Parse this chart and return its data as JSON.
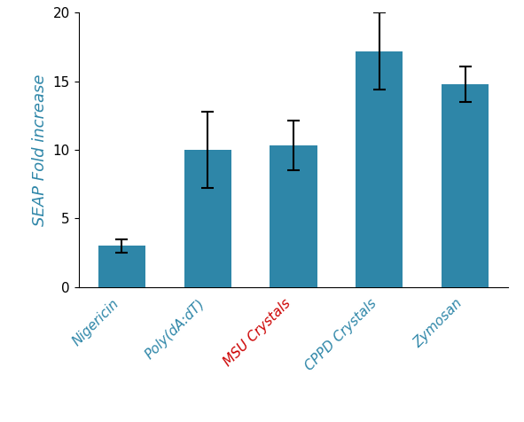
{
  "categories": [
    "Nigericin",
    "Poly(dA:dT)",
    "MSU Crystals",
    "CPPD Crystals",
    "Zymosan"
  ],
  "values": [
    3.0,
    10.0,
    10.3,
    17.2,
    14.8
  ],
  "errors": [
    0.5,
    2.8,
    1.8,
    2.8,
    1.3
  ],
  "bar_color": "#2e86a8",
  "label_colors": [
    "#2e86a8",
    "#2e86a8",
    "#cc0000",
    "#2e86a8",
    "#2e86a8"
  ],
  "ylabel": "SEAP Fold increase",
  "ylim": [
    0,
    20
  ],
  "yticks": [
    0,
    5,
    10,
    15,
    20
  ],
  "bar_width": 0.55,
  "ylabel_fontsize": 13,
  "tick_label_fontsize": 11,
  "figure_width": 5.91,
  "figure_height": 4.76,
  "dpi": 100
}
